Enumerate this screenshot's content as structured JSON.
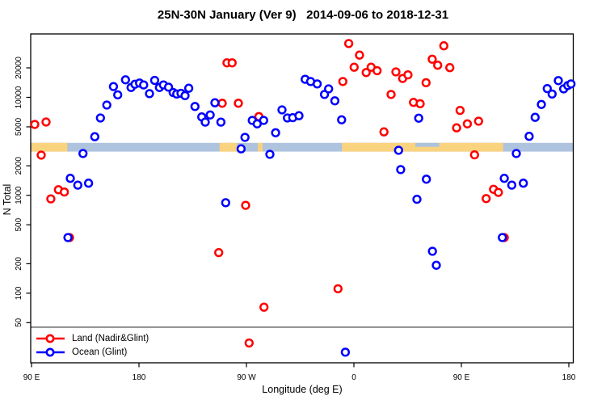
{
  "chart": {
    "title": "25N-30N January (Ver 9)   2014-09-06 to 2018-12-31",
    "x_axis": {
      "label": "Longitude (deg E)",
      "ticks": [
        {
          "lon": 90,
          "label": "90 E"
        },
        {
          "lon": 180,
          "label": "180"
        },
        {
          "lon": 270,
          "label": "90 W"
        },
        {
          "lon": 360,
          "label": "0"
        },
        {
          "lon": 450,
          "label": "90 E"
        },
        {
          "lon": 540,
          "label": "180"
        }
      ]
    },
    "y_axis": {
      "label": "N Total",
      "scale": "log",
      "ticks": [
        "50",
        "100",
        "200",
        "500",
        "1000",
        "2000",
        "5000",
        "10000",
        "20000"
      ]
    },
    "legend": [
      {
        "label": "Land (Nadir&Glint)",
        "color": "#ff0000"
      },
      {
        "label": "Ocean (Glint)",
        "color": "#0000ff"
      }
    ],
    "colors": {
      "land_point": "#ff0000",
      "ocean_point": "#0000ff",
      "land_strip": "#fad37e",
      "ocean_strip": "#aec3de",
      "threshold_line": "#3a3a3a",
      "frame": "#000000"
    },
    "map_strip": {
      "comment": "horizontal land/ocean strip drawn across plot near N=3000",
      "ocean_span": [
        90,
        543
      ],
      "land_segments": [
        [
          90,
          120
        ],
        [
          247.5,
          262
        ],
        [
          279.5,
          283.5
        ],
        [
          350,
          485
        ]
      ],
      "water_patches_upper_half": [
        [
          411.5,
          431.5
        ]
      ]
    },
    "threshold_line_n": 45
  },
  "chart_data": {
    "type": "scatter",
    "title": "25N-30N January (Ver 9)   2014-09-06 to 2018-12-31",
    "xlabel": "Longitude (deg E)",
    "ylabel": "N Total",
    "x_axis_note": "longitude in deg E increasing eastward from 90E, wrapping 90E->180->90W->0->90E->180 (90 to 540)",
    "xlim": [
      90,
      543
    ],
    "ylim_log": [
      20,
      44000
    ],
    "grid": false,
    "legend_position": "bottom-left",
    "series": [
      {
        "name": "Land (Nadir&Glint)",
        "color": "#ff0000",
        "points": [
          [
            92.7,
            5290
          ],
          [
            102.2,
            5600
          ],
          [
            98.1,
            2570
          ],
          [
            106.2,
            920
          ],
          [
            112.5,
            1140
          ],
          [
            117.5,
            1080
          ],
          [
            121.8,
            370
          ],
          [
            246.8,
            260
          ],
          [
            249.7,
            8700
          ],
          [
            253.7,
            22500
          ],
          [
            258.0,
            22500
          ],
          [
            263.2,
            8700
          ],
          [
            269.3,
            790
          ],
          [
            272.2,
            31
          ],
          [
            280.4,
            6360
          ],
          [
            284.7,
            72
          ],
          [
            346.7,
            111
          ],
          [
            350.7,
            14500
          ],
          [
            355.7,
            35400
          ],
          [
            360.2,
            20300
          ],
          [
            364.7,
            27000
          ],
          [
            370.3,
            17900
          ],
          [
            374.4,
            20300
          ],
          [
            379.4,
            18700
          ],
          [
            385.2,
            4440
          ],
          [
            391.1,
            10700
          ],
          [
            395.2,
            18200
          ],
          [
            400.8,
            15600
          ],
          [
            405.3,
            17000
          ],
          [
            409.9,
            8890
          ],
          [
            415.5,
            8600
          ],
          [
            420.4,
            14100
          ],
          [
            425.6,
            24500
          ],
          [
            430.2,
            21300
          ],
          [
            435.3,
            33600
          ],
          [
            440.3,
            20100
          ],
          [
            446.0,
            4880
          ],
          [
            448.9,
            7360
          ],
          [
            455.0,
            5360
          ],
          [
            461.0,
            2590
          ],
          [
            464.4,
            5710
          ],
          [
            470.8,
            925
          ],
          [
            476.9,
            1150
          ],
          [
            481.0,
            1070
          ],
          [
            485.9,
            370
          ]
        ]
      },
      {
        "name": "Ocean (Glint)",
        "color": "#0000ff",
        "points": [
          [
            120.5,
            370
          ],
          [
            122.5,
            1490
          ],
          [
            128.8,
            1270
          ],
          [
            133.1,
            2670
          ],
          [
            137.8,
            1330
          ],
          [
            143.0,
            3960
          ],
          [
            147.7,
            6160
          ],
          [
            153.1,
            8350
          ],
          [
            158.6,
            12900
          ],
          [
            162.2,
            10600
          ],
          [
            168.7,
            15100
          ],
          [
            173.4,
            12600
          ],
          [
            176.6,
            13600
          ],
          [
            180.5,
            14000
          ],
          [
            183.9,
            13400
          ],
          [
            188.8,
            10900
          ],
          [
            193.1,
            14900
          ],
          [
            197.1,
            12600
          ],
          [
            200.5,
            13400
          ],
          [
            204.8,
            12700
          ],
          [
            208.6,
            11200
          ],
          [
            211.6,
            10800
          ],
          [
            215.2,
            11000
          ],
          [
            218.6,
            10400
          ],
          [
            221.7,
            12400
          ],
          [
            226.9,
            8070
          ],
          [
            232.6,
            6310
          ],
          [
            235.5,
            5590
          ],
          [
            239.6,
            6610
          ],
          [
            243.6,
            8800
          ],
          [
            248.6,
            5590
          ],
          [
            252.6,
            840
          ],
          [
            265.5,
            2980
          ],
          [
            268.8,
            3900
          ],
          [
            274.9,
            5820
          ],
          [
            279.0,
            5360
          ],
          [
            284.4,
            5820
          ],
          [
            289.6,
            2620
          ],
          [
            294.4,
            4350
          ],
          [
            299.8,
            7450
          ],
          [
            304.3,
            6160
          ],
          [
            308.8,
            6200
          ],
          [
            314.0,
            6500
          ],
          [
            319.2,
            15300
          ],
          [
            323.7,
            14500
          ],
          [
            329.3,
            13700
          ],
          [
            335.4,
            10700
          ],
          [
            338.8,
            12200
          ],
          [
            344.0,
            9220
          ],
          [
            349.7,
            5900
          ],
          [
            352.8,
            25
          ],
          [
            397.4,
            2880
          ],
          [
            399.2,
            1830
          ],
          [
            412.8,
            910
          ],
          [
            414.3,
            6120
          ],
          [
            420.7,
            1460
          ],
          [
            425.8,
            268
          ],
          [
            429.0,
            193
          ],
          [
            484.3,
            370
          ],
          [
            485.9,
            1490
          ],
          [
            492.2,
            1270
          ],
          [
            496.0,
            2670
          ],
          [
            501.9,
            1330
          ],
          [
            506.8,
            4000
          ],
          [
            511.8,
            6250
          ],
          [
            517.0,
            8450
          ],
          [
            521.9,
            12300
          ],
          [
            526.0,
            10800
          ],
          [
            531.2,
            14800
          ],
          [
            535.7,
            12200
          ],
          [
            539.1,
            13200
          ],
          [
            541.8,
            13700
          ]
        ]
      }
    ]
  }
}
